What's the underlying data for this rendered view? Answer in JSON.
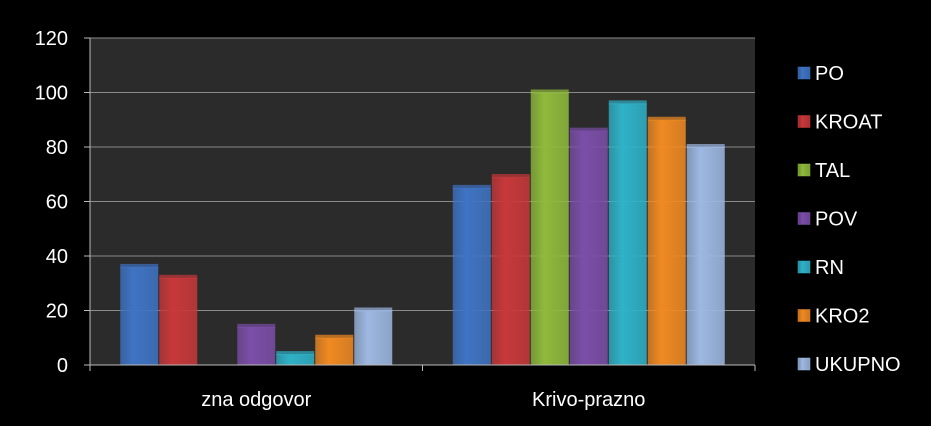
{
  "chart_data": {
    "type": "bar",
    "categories": [
      "zna odgovor",
      "Krivo-prazno"
    ],
    "series": [
      {
        "name": "PO",
        "values": [
          36,
          65
        ],
        "color": "#3f74c4"
      },
      {
        "name": "KROAT",
        "values": [
          32,
          69
        ],
        "color": "#c8383a"
      },
      {
        "name": "TAL",
        "values": [
          0,
          100
        ],
        "color": "#8fba3c"
      },
      {
        "name": "POV",
        "values": [
          14,
          86
        ],
        "color": "#7b4ea8"
      },
      {
        "name": "RN",
        "values": [
          4,
          96
        ],
        "color": "#2fb2c8"
      },
      {
        "name": "KRO2",
        "values": [
          10,
          90
        ],
        "color": "#f08a22"
      },
      {
        "name": "UKUPNO",
        "values": [
          20,
          80
        ],
        "color": "#9db8e2"
      }
    ],
    "yticks": [
      "0",
      "20",
      "40",
      "60",
      "80",
      "100",
      "120"
    ],
    "ylim": [
      0,
      120
    ],
    "grid": true,
    "legend_position": "right",
    "plot_background": "#2b2b2b",
    "background": "#000000"
  }
}
